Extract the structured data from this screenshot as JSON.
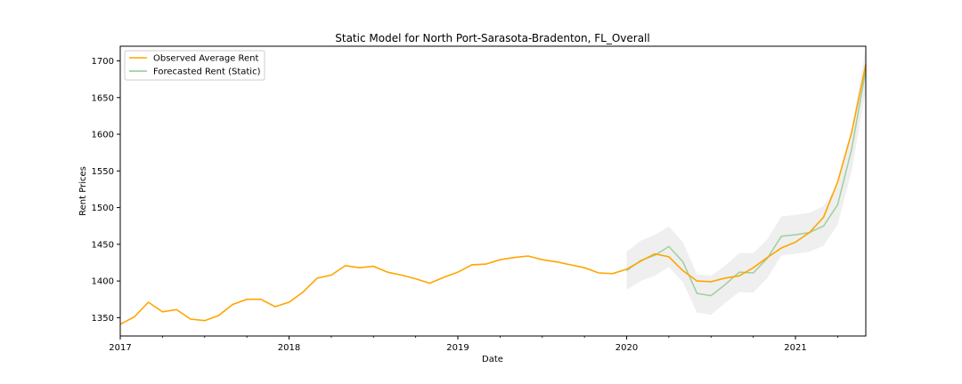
{
  "chart_data": {
    "type": "line",
    "title": "Static Model for North Port-Sarasota-Bradenton, FL_Overall",
    "xlabel": "Date",
    "ylabel": "Rent Prices",
    "x_range": [
      "2017-01",
      "2021-06"
    ],
    "ylim": [
      1325,
      1720
    ],
    "x_ticks": [
      "2017",
      "2018",
      "2019",
      "2020",
      "2021"
    ],
    "y_ticks": [
      1350,
      1400,
      1450,
      1500,
      1550,
      1600,
      1650,
      1700
    ],
    "grid": false,
    "legend_position": "top-left",
    "series": [
      {
        "name": "Observed Average Rent",
        "color": "#ffa500",
        "x": [
          "2017-01",
          "2017-02",
          "2017-03",
          "2017-04",
          "2017-05",
          "2017-06",
          "2017-07",
          "2017-08",
          "2017-09",
          "2017-10",
          "2017-11",
          "2017-12",
          "2018-01",
          "2018-02",
          "2018-03",
          "2018-04",
          "2018-05",
          "2018-06",
          "2018-07",
          "2018-08",
          "2018-09",
          "2018-10",
          "2018-11",
          "2018-12",
          "2019-01",
          "2019-02",
          "2019-03",
          "2019-04",
          "2019-05",
          "2019-06",
          "2019-07",
          "2019-08",
          "2019-09",
          "2019-10",
          "2019-11",
          "2019-12",
          "2020-01",
          "2020-02",
          "2020-03",
          "2020-04",
          "2020-05",
          "2020-06",
          "2020-07",
          "2020-08",
          "2020-09",
          "2020-10",
          "2020-11",
          "2020-12",
          "2021-01",
          "2021-02",
          "2021-03",
          "2021-04",
          "2021-05",
          "2021-06"
        ],
        "values": [
          1341,
          1351,
          1371,
          1358,
          1361,
          1348,
          1346,
          1353,
          1368,
          1375,
          1375,
          1365,
          1371,
          1385,
          1404,
          1408,
          1421,
          1418,
          1420,
          1412,
          1408,
          1403,
          1397,
          1405,
          1412,
          1422,
          1423,
          1429,
          1432,
          1434,
          1429,
          1426,
          1422,
          1418,
          1411,
          1410,
          1416,
          1427,
          1437,
          1433,
          1414,
          1400,
          1399,
          1404,
          1407,
          1418,
          1432,
          1445,
          1453,
          1466,
          1487,
          1535,
          1603,
          1695
        ]
      },
      {
        "name": "Forecasted Rent (Static)",
        "color": "#8fc98f",
        "x": [
          "2020-01",
          "2020-02",
          "2020-03",
          "2020-04",
          "2020-05",
          "2020-06",
          "2020-07",
          "2020-08",
          "2020-09",
          "2020-10",
          "2020-11",
          "2020-12",
          "2021-01",
          "2021-02",
          "2021-03",
          "2021-04",
          "2021-05",
          "2021-06"
        ],
        "values": [
          1414,
          1428,
          1435,
          1447,
          1426,
          1383,
          1380,
          1395,
          1412,
          1411,
          1431,
          1461,
          1463,
          1466,
          1475,
          1504,
          1580,
          1688
        ]
      }
    ],
    "confidence_band": {
      "x": [
        "2020-01",
        "2020-02",
        "2020-03",
        "2020-04",
        "2020-05",
        "2020-06",
        "2020-07",
        "2020-08",
        "2020-09",
        "2020-10",
        "2020-11",
        "2020-12",
        "2021-01",
        "2021-02",
        "2021-03",
        "2021-04",
        "2021-05",
        "2021-06"
      ],
      "lower": [
        1388,
        1400,
        1407,
        1419,
        1398,
        1357,
        1354,
        1370,
        1385,
        1384,
        1404,
        1435,
        1437,
        1440,
        1448,
        1477,
        1550,
        1660
      ],
      "upper": [
        1440,
        1455,
        1463,
        1474,
        1453,
        1409,
        1407,
        1421,
        1438,
        1438,
        1457,
        1488,
        1490,
        1493,
        1502,
        1531,
        1608,
        1716
      ]
    }
  }
}
